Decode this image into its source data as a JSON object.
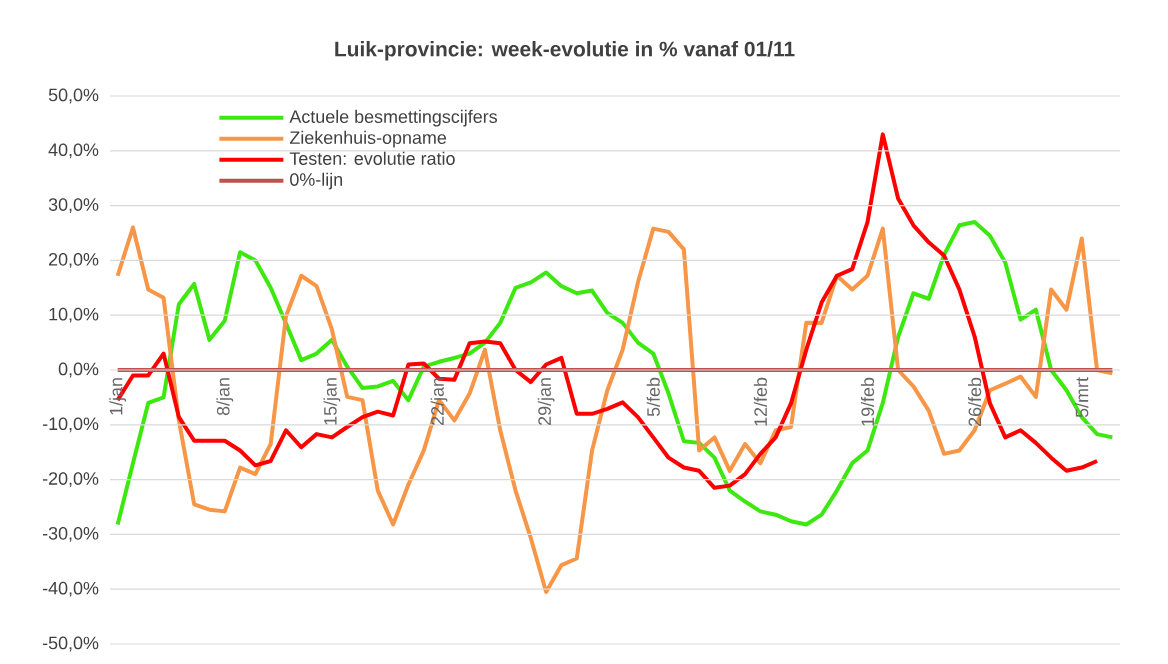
{
  "chart_data": {
    "type": "line",
    "title": "Luik-provincie: week-evolutie in %  vanaf 01/11",
    "categories": [
      "1/jan",
      null,
      null,
      null,
      null,
      null,
      null,
      "8/jan",
      null,
      null,
      null,
      null,
      null,
      null,
      "15/jan",
      null,
      null,
      null,
      null,
      null,
      null,
      "22/jan",
      null,
      null,
      null,
      null,
      null,
      null,
      "29/jan",
      null,
      null,
      null,
      null,
      null,
      null,
      "5/feb",
      null,
      null,
      null,
      null,
      null,
      null,
      "12/feb",
      null,
      null,
      null,
      null,
      null,
      null,
      "19/feb",
      null,
      null,
      null,
      null,
      null,
      null,
      "26/feb",
      null,
      null,
      null,
      null,
      null,
      null,
      "5/mrt",
      null,
      null
    ],
    "series": [
      {
        "name": "Actuele besmettingscijfers",
        "color": "#3de810",
        "values": [
          -28.2,
          -17,
          -6,
          -5,
          12,
          15.7,
          5.5,
          9,
          21.5,
          20,
          15,
          8.5,
          1.8,
          3,
          5.5,
          0.6,
          -3.3,
          -3,
          -2,
          -5.5,
          0.6,
          1.5,
          2.2,
          3,
          5,
          8.6,
          15,
          16,
          17.8,
          15.3,
          14,
          14.5,
          10.4,
          8.6,
          5,
          3,
          -4.3,
          -13,
          -13.3,
          -16,
          -22,
          -24,
          -25.8,
          -26.4,
          -27.6,
          -28.2,
          -26.4,
          -22,
          -17,
          -14.7,
          -6,
          6,
          14,
          13,
          21,
          26.4,
          27,
          24.5,
          19.6,
          9.2,
          11,
          0,
          -3.7,
          -8.6,
          -11.7,
          -12.3
        ]
      },
      {
        "name": "Ziekenhuis-opname",
        "color": "#f79646",
        "values": [
          17.2,
          26,
          14.7,
          13.2,
          -9.2,
          -24.5,
          -25.5,
          -25.8,
          -17.8,
          -19,
          -13.5,
          9.8,
          17.2,
          15.3,
          7.4,
          -4.9,
          -5.5,
          -22,
          -28.2,
          -20.9,
          -14.7,
          -5.5,
          -9.2,
          -4.3,
          3.7,
          -11,
          -22,
          -30.7,
          -40.5,
          -35.6,
          -34.4,
          -14.7,
          -3.7,
          3.7,
          16,
          25.8,
          25.2,
          22,
          -14.7,
          -12.3,
          -18.4,
          -13.5,
          -17,
          -11,
          -10.4,
          8.6,
          8.6,
          17.2,
          14.7,
          17.2,
          25.8,
          0,
          -3,
          -7.4,
          -15.3,
          -14.7,
          -11,
          -3.7,
          -2.5,
          -1.2,
          -4.9,
          14.7,
          11,
          24,
          0,
          -0.6
        ]
      },
      {
        "name": "Testen: evolutie ratio",
        "color": "#ff0000",
        "values": [
          -5.5,
          -1,
          -1,
          3,
          -8.6,
          -12.9,
          -12.9,
          -12.9,
          -14.7,
          -17.4,
          -16.6,
          -11,
          -14.1,
          -11.7,
          -12.3,
          -10.4,
          -8.6,
          -7.6,
          -8.3,
          1,
          1.2,
          -1.6,
          -1.8,
          4.9,
          5.2,
          4.9,
          0,
          -2.2,
          1,
          2.2,
          -8,
          -8,
          -7.1,
          -5.9,
          -8.6,
          -12.3,
          -16,
          -17.8,
          -18.4,
          -21.5,
          -21.1,
          -19,
          -15.3,
          -12.3,
          -6.1,
          3.7,
          12.3,
          17.2,
          18.4,
          27,
          43,
          31.3,
          26.4,
          23.3,
          20.9,
          14.7,
          6.1,
          -6.1,
          -12.3,
          -11,
          -13.3,
          -16,
          -18.4,
          -17.8,
          -16.6,
          null
        ]
      },
      {
        "name": "0%-lijn",
        "color": "#c0504d",
        "values": [
          0,
          0,
          0,
          0,
          0,
          0,
          0,
          0,
          0,
          0,
          0,
          0,
          0,
          0,
          0,
          0,
          0,
          0,
          0,
          0,
          0,
          0,
          0,
          0,
          0,
          0,
          0,
          0,
          0,
          0,
          0,
          0,
          0,
          0,
          0,
          0,
          0,
          0,
          0,
          0,
          0,
          0,
          0,
          0,
          0,
          0,
          0,
          0,
          0,
          0,
          0,
          0,
          0,
          0,
          0,
          0,
          0,
          0,
          0,
          0,
          0,
          0,
          0,
          0,
          0,
          0
        ]
      }
    ],
    "ylim": [
      -50,
      50
    ],
    "yticks": [
      {
        "value": -50,
        "label": "-50,0%"
      },
      {
        "value": -40,
        "label": "-40,0%"
      },
      {
        "value": -30,
        "label": "-30,0%"
      },
      {
        "value": -20,
        "label": "-20,0%"
      },
      {
        "value": -10,
        "label": "-10,0%"
      },
      {
        "value": 0,
        "label": "0,0%"
      },
      {
        "value": 10,
        "label": "10,0%"
      },
      {
        "value": 20,
        "label": "20,0%"
      },
      {
        "value": 30,
        "label": "30,0%"
      },
      {
        "value": 40,
        "label": "40,0%"
      },
      {
        "value": 50,
        "label": "50,0%"
      }
    ],
    "grid": "y",
    "legend": "top left",
    "marker": "none",
    "line_style": "solid"
  }
}
